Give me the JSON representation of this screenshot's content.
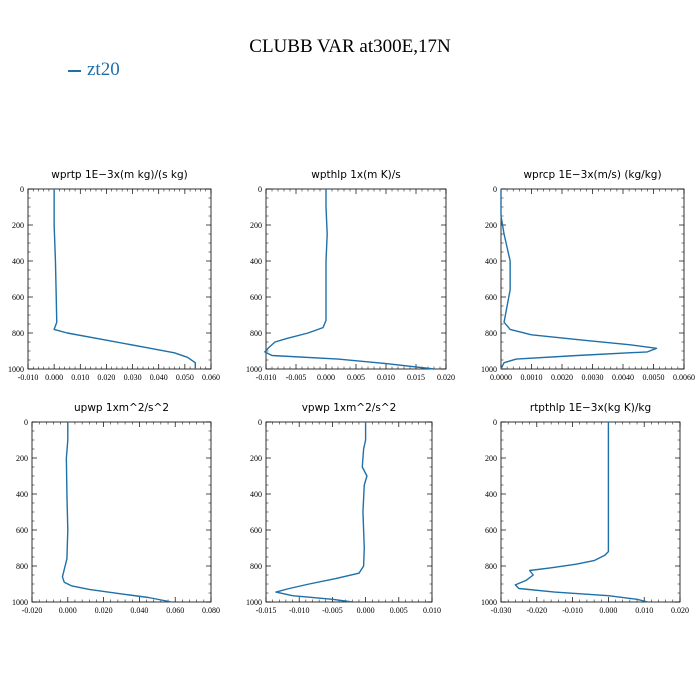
{
  "title": "CLUBB VAR at300E,17N",
  "legend": {
    "label": "zt20",
    "color": "#1f6fa8"
  },
  "chart_data": [
    {
      "type": "line",
      "title": "wprtp   1E−3x(m kg)/(s kg)",
      "xlim": [
        -0.01,
        0.06
      ],
      "xticks": [
        "-0.010",
        "0.000",
        "0.010",
        "0.020",
        "0.030",
        "0.040",
        "0.050",
        "0.060"
      ],
      "ylim": [
        1000,
        0
      ],
      "yticks": [
        "0",
        "200",
        "400",
        "600",
        "800",
        "1000"
      ],
      "series": [
        {
          "points": [
            [
              0.0,
              0
            ],
            [
              0.0,
              200
            ],
            [
              0.0005,
              400
            ],
            [
              0.0008,
              600
            ],
            [
              0.001,
              740
            ],
            [
              0.0,
              780
            ],
            [
              0.005,
              800
            ],
            [
              0.02,
              840
            ],
            [
              0.035,
              880
            ],
            [
              0.046,
              910
            ],
            [
              0.051,
              935
            ],
            [
              0.054,
              965
            ],
            [
              0.054,
              1000
            ]
          ]
        }
      ]
    },
    {
      "type": "line",
      "title": "wpthlp   1x(m K)/s",
      "xlim": [
        -0.01,
        0.02
      ],
      "xticks": [
        "-0.010",
        "-0.005",
        "0.000",
        "0.005",
        "0.010",
        "0.015",
        "0.020"
      ],
      "ylim": [
        1000,
        0
      ],
      "yticks": [
        "0",
        "200",
        "400",
        "600",
        "800",
        "1000"
      ],
      "series": [
        {
          "points": [
            [
              0.0,
              0
            ],
            [
              0.0,
              100
            ],
            [
              0.0002,
              250
            ],
            [
              0.0,
              400
            ],
            [
              0.0,
              600
            ],
            [
              0.0,
              730
            ],
            [
              -0.0005,
              770
            ],
            [
              -0.003,
              800
            ],
            [
              -0.0065,
              830
            ],
            [
              -0.0085,
              850
            ],
            [
              -0.0095,
              880
            ],
            [
              -0.0102,
              905
            ],
            [
              -0.009,
              925
            ],
            [
              0.002,
              945
            ],
            [
              0.01,
              970
            ],
            [
              0.018,
              1000
            ]
          ]
        }
      ]
    },
    {
      "type": "line",
      "title": "wprcp   1E−3x(m/s) (kg/kg)",
      "xlim": [
        0.0,
        0.006
      ],
      "xticks": [
        "0.0000",
        "0.0010",
        "0.0020",
        "0.0030",
        "0.0040",
        "0.0050",
        "0.0060"
      ],
      "ylim": [
        1000,
        0
      ],
      "yticks": [
        "0",
        "200",
        "400",
        "600",
        "800",
        "1000"
      ],
      "series": [
        {
          "points": [
            [
              0.0,
              0
            ],
            [
              0.0,
              150
            ],
            [
              0.0001,
              250
            ],
            [
              0.0003,
              400
            ],
            [
              0.0003,
              500
            ],
            [
              0.0003,
              560
            ],
            [
              0.0002,
              650
            ],
            [
              0.0001,
              740
            ],
            [
              0.0003,
              780
            ],
            [
              0.001,
              810
            ],
            [
              0.0027,
              840
            ],
            [
              0.0042,
              865
            ],
            [
              0.0051,
              885
            ],
            [
              0.0048,
              905
            ],
            [
              0.0025,
              925
            ],
            [
              0.0005,
              945
            ],
            [
              0.0001,
              965
            ],
            [
              0.0,
              1000
            ]
          ]
        }
      ]
    },
    {
      "type": "line",
      "title": "upwp   1xm^2/s^2",
      "xlim": [
        -0.02,
        0.08
      ],
      "xticks": [
        "-0.020",
        "0.000",
        "0.020",
        "0.040",
        "0.060",
        "0.080"
      ],
      "ylim": [
        1000,
        0
      ],
      "yticks": [
        "0",
        "200",
        "400",
        "600",
        "800",
        "1000"
      ],
      "series": [
        {
          "points": [
            [
              0.0,
              0
            ],
            [
              0.0,
              100
            ],
            [
              -0.0008,
              200
            ],
            [
              -0.0005,
              400
            ],
            [
              0.0,
              600
            ],
            [
              -0.0005,
              760
            ],
            [
              -0.0015,
              800
            ],
            [
              -0.003,
              860
            ],
            [
              -0.002,
              890
            ],
            [
              0.002,
              910
            ],
            [
              0.012,
              930
            ],
            [
              0.03,
              955
            ],
            [
              0.045,
              975
            ],
            [
              0.058,
              1000
            ]
          ]
        }
      ]
    },
    {
      "type": "line",
      "title": "vpwp   1xm^2/s^2",
      "xlim": [
        -0.015,
        0.01
      ],
      "xticks": [
        "-0.015",
        "-0.010",
        "-0.005",
        "0.000",
        "0.005",
        "0.010"
      ],
      "ylim": [
        1000,
        0
      ],
      "yticks": [
        "0",
        "200",
        "400",
        "600",
        "800",
        "1000"
      ],
      "series": [
        {
          "points": [
            [
              0.0,
              0
            ],
            [
              0.0,
              100
            ],
            [
              -0.0003,
              150
            ],
            [
              -0.0005,
              250
            ],
            [
              0.0002,
              300
            ],
            [
              -0.0002,
              350
            ],
            [
              -0.0004,
              500
            ],
            [
              -0.0003,
              600
            ],
            [
              -0.0002,
              700
            ],
            [
              -0.0003,
              800
            ],
            [
              -0.001,
              840
            ],
            [
              -0.0045,
              870
            ],
            [
              -0.0085,
              900
            ],
            [
              -0.0115,
              925
            ],
            [
              -0.0135,
              945
            ],
            [
              -0.011,
              965
            ],
            [
              -0.005,
              985
            ],
            [
              -0.002,
              1000
            ]
          ]
        }
      ]
    },
    {
      "type": "line",
      "title": "rtpthlp   1E−3x(kg K)/kg",
      "xlim": [
        -0.03,
        0.02
      ],
      "xticks": [
        "-0.030",
        "-0.020",
        "-0.010",
        "0.000",
        "0.010",
        "0.020"
      ],
      "ylim": [
        1000,
        0
      ],
      "yticks": [
        "0",
        "200",
        "400",
        "600",
        "800",
        "1000"
      ],
      "series": [
        {
          "points": [
            [
              0.0,
              0
            ],
            [
              0.0,
              200
            ],
            [
              0.0,
              400
            ],
            [
              0.0,
              600
            ],
            [
              0.0,
              720
            ],
            [
              -0.001,
              740
            ],
            [
              -0.004,
              770
            ],
            [
              -0.009,
              790
            ],
            [
              -0.016,
              810
            ],
            [
              -0.022,
              825
            ],
            [
              -0.021,
              850
            ],
            [
              -0.023,
              880
            ],
            [
              -0.026,
              905
            ],
            [
              -0.025,
              925
            ],
            [
              -0.015,
              945
            ],
            [
              0.0,
              965
            ],
            [
              0.008,
              985
            ],
            [
              0.011,
              1000
            ]
          ]
        }
      ]
    }
  ]
}
